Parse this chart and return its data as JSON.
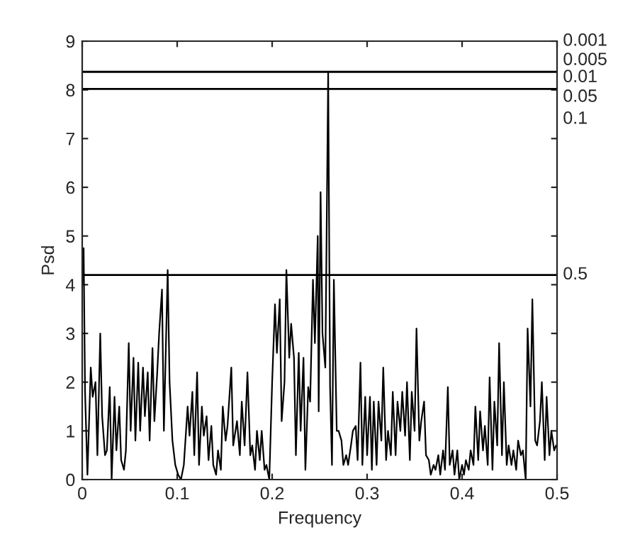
{
  "chart_data": {
    "type": "line",
    "xlabel": "Frequency",
    "ylabel": "Psd",
    "xlim": [
      0,
      0.5
    ],
    "xticks": [
      0,
      0.1,
      0.2,
      0.3,
      0.4,
      0.5
    ],
    "ylim": [
      0,
      9
    ],
    "yticks": [
      0,
      1,
      2,
      3,
      4,
      5,
      6,
      7,
      8,
      9
    ],
    "annotations": [
      "0.001",
      "0.005",
      "0.01",
      "0.05",
      "0.1",
      "0.5"
    ],
    "grid": false,
    "legend": false,
    "marker": "none",
    "line_style": "solid",
    "ref_lines": [
      {
        "axis": "y",
        "value": 8.37,
        "color": "#000000"
      },
      {
        "axis": "y",
        "value": 8.02,
        "color": "#000000"
      },
      {
        "axis": "y",
        "value": 4.2,
        "color": "#000000"
      }
    ],
    "series": [
      {
        "color": "#000000",
        "x": [
          0.0,
          0.0015,
          0.003,
          0.0055,
          0.009,
          0.011,
          0.014,
          0.016,
          0.019,
          0.021,
          0.024,
          0.026,
          0.029,
          0.031,
          0.034,
          0.036,
          0.039,
          0.041,
          0.044,
          0.046,
          0.049,
          0.051,
          0.054,
          0.056,
          0.059,
          0.061,
          0.064,
          0.066,
          0.069,
          0.071,
          0.074,
          0.076,
          0.079,
          0.081,
          0.084,
          0.086,
          0.09,
          0.092,
          0.095,
          0.098,
          0.101,
          0.104,
          0.107,
          0.111,
          0.113,
          0.116,
          0.118,
          0.121,
          0.123,
          0.126,
          0.128,
          0.131,
          0.133,
          0.136,
          0.138,
          0.141,
          0.143,
          0.146,
          0.148,
          0.151,
          0.153,
          0.157,
          0.159,
          0.163,
          0.166,
          0.168,
          0.171,
          0.174,
          0.177,
          0.179,
          0.182,
          0.184,
          0.187,
          0.189,
          0.192,
          0.194,
          0.197,
          0.2,
          0.203,
          0.205,
          0.208,
          0.21,
          0.213,
          0.215,
          0.218,
          0.22,
          0.223,
          0.225,
          0.228,
          0.23,
          0.233,
          0.235,
          0.238,
          0.24,
          0.243,
          0.245,
          0.248,
          0.249,
          0.251,
          0.253,
          0.256,
          0.259,
          0.261,
          0.263,
          0.265,
          0.268,
          0.27,
          0.273,
          0.275,
          0.278,
          0.28,
          0.283,
          0.285,
          0.288,
          0.29,
          0.293,
          0.295,
          0.298,
          0.3,
          0.303,
          0.305,
          0.307,
          0.31,
          0.312,
          0.315,
          0.317,
          0.32,
          0.322,
          0.325,
          0.327,
          0.33,
          0.332,
          0.335,
          0.337,
          0.34,
          0.342,
          0.345,
          0.347,
          0.35,
          0.352,
          0.355,
          0.357,
          0.36,
          0.362,
          0.365,
          0.367,
          0.37,
          0.372,
          0.375,
          0.377,
          0.38,
          0.382,
          0.385,
          0.387,
          0.39,
          0.392,
          0.395,
          0.397,
          0.4,
          0.402,
          0.404,
          0.407,
          0.409,
          0.412,
          0.414,
          0.417,
          0.419,
          0.422,
          0.424,
          0.427,
          0.429,
          0.432,
          0.434,
          0.437,
          0.439,
          0.442,
          0.444,
          0.447,
          0.449,
          0.452,
          0.454,
          0.457,
          0.459,
          0.462,
          0.464,
          0.467,
          0.469,
          0.472,
          0.474,
          0.477,
          0.479,
          0.482,
          0.484,
          0.487,
          0.489,
          0.492,
          0.494,
          0.497,
          0.499
        ],
        "values": [
          4.0,
          4.75,
          1.8,
          0.1,
          2.3,
          1.7,
          2.0,
          0.5,
          3.0,
          1.3,
          0.5,
          0.6,
          1.9,
          0.0,
          1.7,
          0.6,
          1.5,
          0.4,
          0.2,
          0.6,
          2.8,
          1.0,
          2.5,
          0.8,
          2.4,
          1.0,
          2.3,
          1.3,
          2.2,
          0.8,
          2.7,
          1.2,
          2.2,
          3.0,
          3.9,
          1.0,
          4.3,
          2.0,
          0.8,
          0.3,
          0.1,
          0.0,
          0.3,
          1.5,
          0.9,
          1.8,
          0.5,
          2.2,
          0.3,
          1.5,
          0.9,
          1.3,
          0.4,
          1.1,
          0.3,
          0.1,
          0.6,
          0.2,
          1.5,
          0.8,
          1.1,
          2.3,
          0.7,
          1.2,
          0.5,
          1.6,
          0.7,
          2.2,
          0.5,
          0.7,
          0.2,
          1.0,
          0.4,
          1.0,
          0.2,
          0.3,
          0.0,
          2.0,
          3.6,
          2.6,
          3.7,
          1.2,
          2.0,
          4.3,
          2.5,
          3.2,
          2.5,
          0.5,
          2.6,
          1.0,
          2.5,
          0.2,
          1.9,
          1.6,
          4.1,
          2.8,
          5.0,
          1.4,
          5.9,
          3.0,
          2.3,
          8.35,
          1.9,
          0.3,
          4.1,
          1.0,
          1.0,
          0.8,
          0.3,
          0.5,
          0.3,
          0.7,
          1.0,
          1.1,
          0.4,
          2.4,
          0.3,
          1.7,
          0.5,
          1.7,
          0.2,
          1.6,
          0.3,
          1.6,
          0.8,
          2.3,
          0.4,
          1.0,
          0.5,
          1.8,
          0.5,
          1.6,
          1.0,
          1.8,
          0.9,
          2.0,
          0.4,
          1.8,
          1.0,
          3.1,
          0.8,
          1.2,
          1.6,
          0.5,
          0.4,
          0.1,
          0.3,
          0.2,
          0.5,
          0.1,
          0.6,
          0.2,
          1.9,
          0.3,
          0.6,
          0.1,
          0.6,
          0.0,
          0.3,
          0.1,
          0.4,
          0.2,
          0.6,
          0.3,
          1.5,
          0.4,
          1.4,
          0.6,
          1.1,
          0.3,
          2.1,
          0.2,
          1.6,
          0.7,
          2.8,
          0.5,
          2.0,
          0.3,
          0.7,
          0.3,
          0.6,
          0.2,
          0.8,
          0.5,
          0.6,
          0.0,
          3.1,
          1.5,
          3.7,
          0.8,
          0.7,
          1.2,
          2.0,
          0.4,
          1.7,
          0.5,
          1.0,
          0.6,
          0.7
        ]
      }
    ]
  }
}
